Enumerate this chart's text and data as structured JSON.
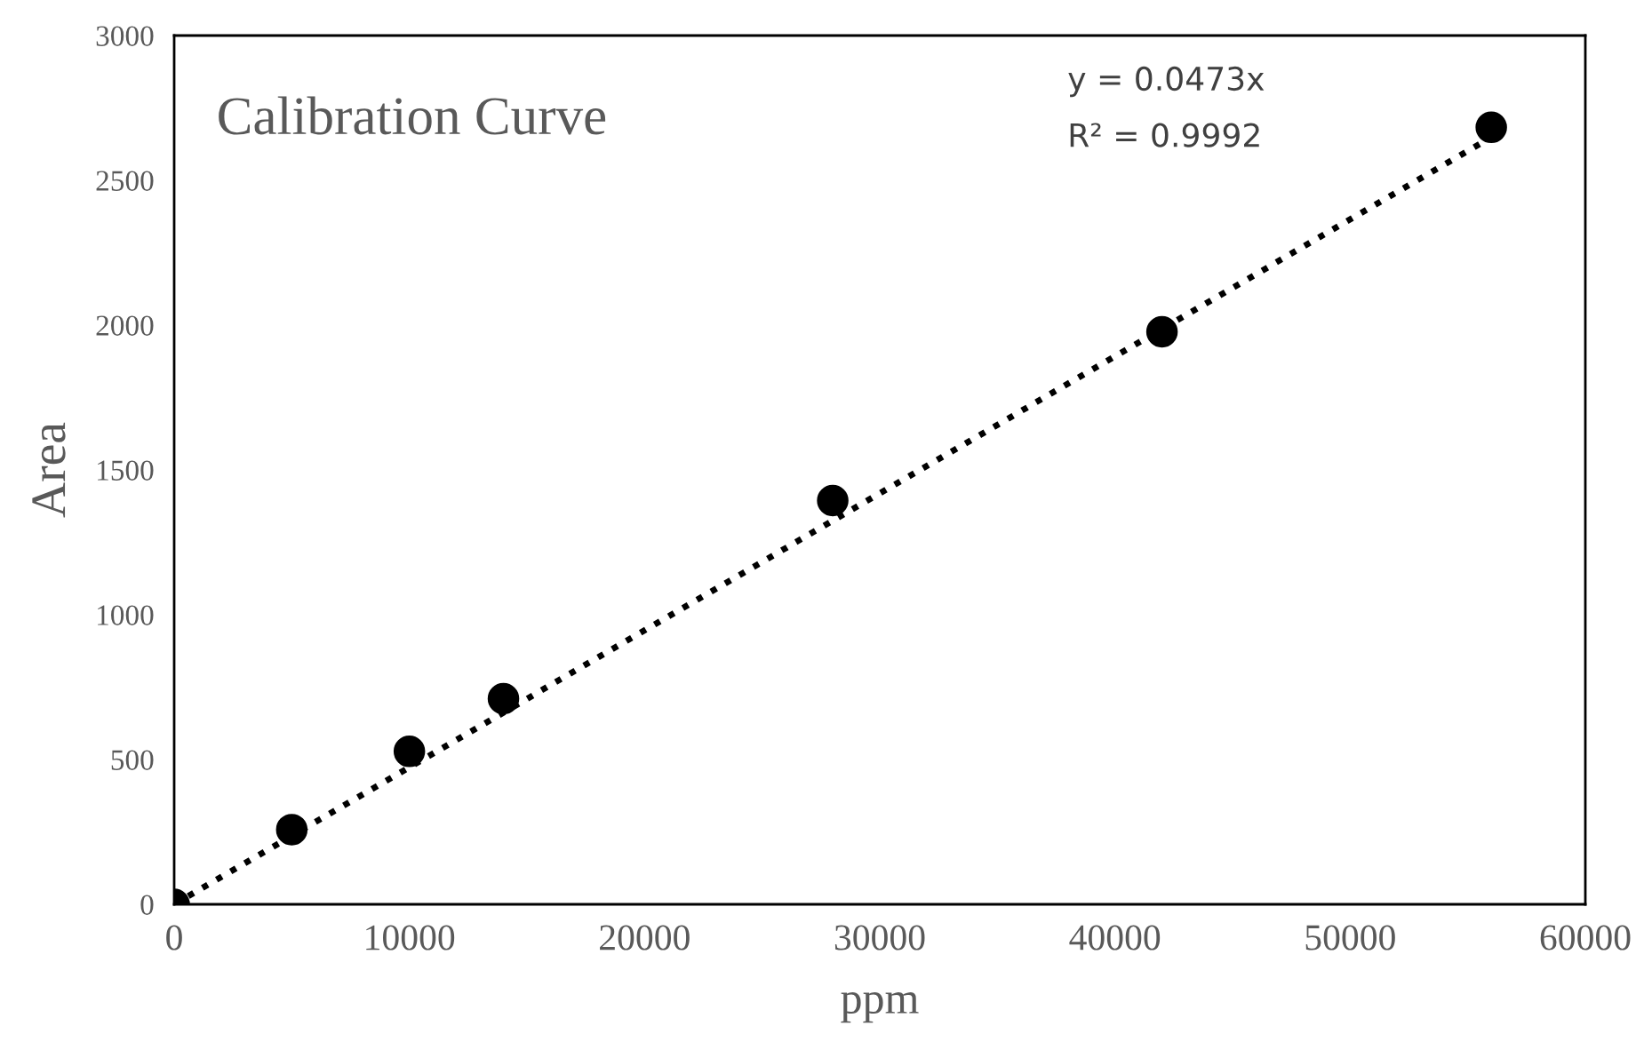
{
  "chart_data": {
    "type": "scatter",
    "title": "Calibration Curve",
    "xlabel": "ppm",
    "ylabel": "Area",
    "annotations": [
      "y = 0.0473x",
      "R² = 0.9992"
    ],
    "series": [
      {
        "color": "#000000",
        "marker": "circle",
        "x": [
          0,
          5000,
          10000,
          14000,
          28000,
          42000,
          56000
        ],
        "values": [
          0,
          258,
          528,
          710,
          1394,
          1977,
          2683
        ]
      },
      {
        "type": "line",
        "color": "#000000",
        "line_style": "dotted",
        "marker": "none",
        "x": [
          0,
          56000
        ],
        "values": [
          0,
          2649
        ]
      }
    ],
    "xlim": [
      0,
      60000
    ],
    "xticks": [
      0,
      10000,
      20000,
      30000,
      40000,
      50000,
      60000
    ],
    "ylim": [
      0,
      3000
    ],
    "yticks": [
      0,
      500,
      1000,
      1500,
      2000,
      2500,
      3000
    ],
    "grid": false,
    "legend": false
  }
}
